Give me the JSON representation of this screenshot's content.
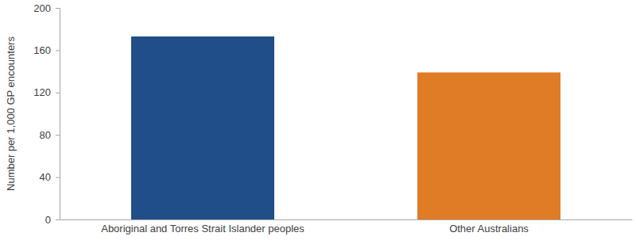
{
  "chart_data": {
    "type": "bar",
    "y_label": "Number per 1,000 GP encounters",
    "categories": [
      "Aboriginal and Torres Strait Islander peoples",
      "Other Australians"
    ],
    "values": [
      173,
      139
    ],
    "colors": [
      "#1f4e88",
      "#e07b26"
    ],
    "ylim": [
      0,
      200
    ],
    "yticks": [
      0,
      40,
      80,
      120,
      160,
      200
    ],
    "grid": false
  }
}
